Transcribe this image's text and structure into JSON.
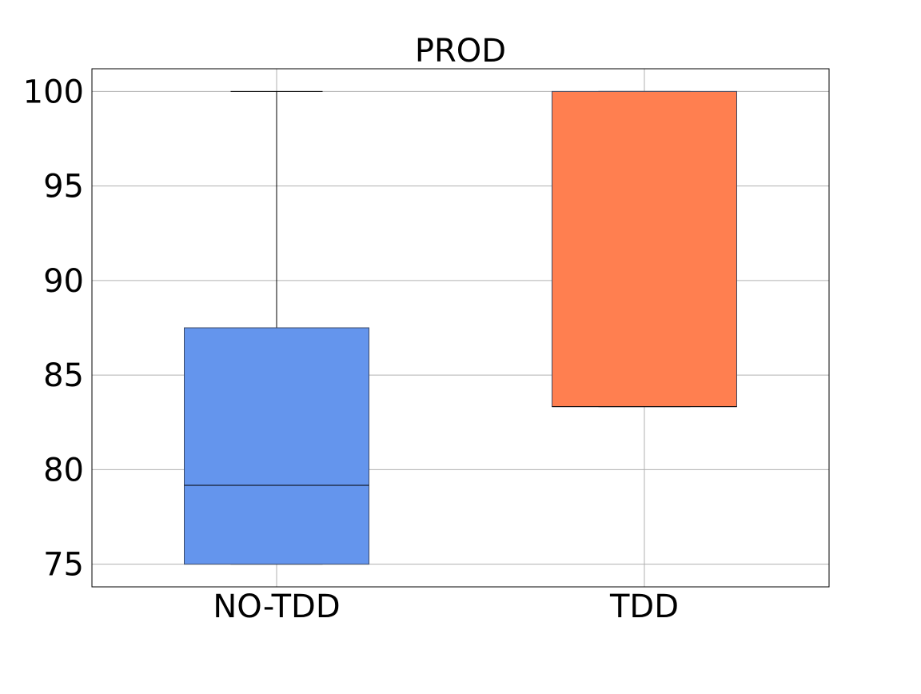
{
  "chart_data": {
    "type": "box",
    "title": "PROD",
    "xlabel": "",
    "ylabel": "",
    "categories": [
      "NO-TDD",
      "TDD"
    ],
    "ylim": [
      73.8,
      101.2
    ],
    "yticks": [
      75,
      80,
      85,
      90,
      95,
      100
    ],
    "ytick_labels": [
      "75",
      "80",
      "85",
      "90",
      "95",
      "100"
    ],
    "grid": true,
    "legend": "none",
    "series": [
      {
        "category": "NO-TDD",
        "whisker_low": 75,
        "q1": 75,
        "median": 79.17,
        "q3": 87.5,
        "whisker_high": 100,
        "color": "#6495ED"
      },
      {
        "category": "TDD",
        "whisker_low": 83.33,
        "q1": 83.33,
        "median": 83.33,
        "q3": 100,
        "whisker_high": 100,
        "color": "#FF7F50"
      }
    ],
    "grid_color": "#b0b0b0",
    "frame_color": "#000000"
  }
}
